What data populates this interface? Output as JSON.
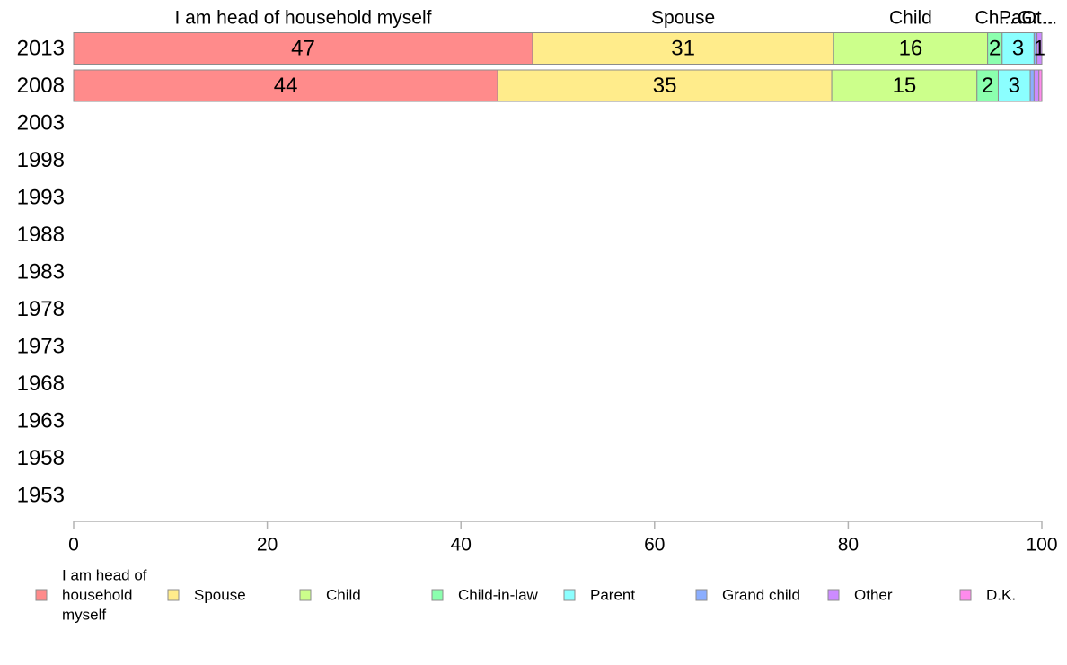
{
  "chart_data": {
    "type": "bar",
    "orientation": "horizontal",
    "stacked": true,
    "categories": [
      "2013",
      "2008",
      "2003",
      "1998",
      "1993",
      "1988",
      "1983",
      "1978",
      "1973",
      "1968",
      "1963",
      "1958",
      "1953"
    ],
    "series": [
      {
        "name": "I am head of household myself",
        "color": "#FF8B8B",
        "values": [
          47.4,
          43.8,
          null,
          null,
          null,
          null,
          null,
          null,
          null,
          null,
          null,
          null,
          null
        ],
        "labels": [
          "47",
          "44",
          "",
          "",
          "",
          "",
          "",
          "",
          "",
          "",
          "",
          "",
          ""
        ]
      },
      {
        "name": "Spouse",
        "color": "#FFEC8B",
        "values": [
          31.1,
          34.5,
          null,
          null,
          null,
          null,
          null,
          null,
          null,
          null,
          null,
          null,
          null
        ],
        "labels": [
          "31",
          "35",
          "",
          "",
          "",
          "",
          "",
          "",
          "",
          "",
          "",
          "",
          ""
        ]
      },
      {
        "name": "Child",
        "color": "#CCFF8B",
        "values": [
          15.9,
          15.0,
          null,
          null,
          null,
          null,
          null,
          null,
          null,
          null,
          null,
          null,
          null
        ],
        "labels": [
          "16",
          "15",
          "",
          "",
          "",
          "",
          "",
          "",
          "",
          "",
          "",
          "",
          ""
        ]
      },
      {
        "name": "Child-in-law",
        "color": "#8BFFAE",
        "values": [
          1.5,
          2.2,
          null,
          null,
          null,
          null,
          null,
          null,
          null,
          null,
          null,
          null,
          null
        ],
        "labels": [
          "2",
          "2",
          "",
          "",
          "",
          "",
          "",
          "",
          "",
          "",
          "",
          "",
          ""
        ]
      },
      {
        "name": "Parent",
        "color": "#8BFFFF",
        "values": [
          3.3,
          3.3,
          null,
          null,
          null,
          null,
          null,
          null,
          null,
          null,
          null,
          null,
          null
        ],
        "labels": [
          "3",
          "3",
          "",
          "",
          "",
          "",
          "",
          "",
          "",
          "",
          "",
          "",
          ""
        ]
      },
      {
        "name": "Grand child",
        "color": "#8BAEFF",
        "values": [
          0.3,
          0.4,
          null,
          null,
          null,
          null,
          null,
          null,
          null,
          null,
          null,
          null,
          null
        ],
        "labels": [
          "",
          "",
          "",
          "",
          "",
          "",
          "",
          "",
          "",
          "",
          "",
          "",
          ""
        ]
      },
      {
        "name": "Other",
        "color": "#CC8BFF",
        "values": [
          0.5,
          0.5,
          null,
          null,
          null,
          null,
          null,
          null,
          null,
          null,
          null,
          null,
          null
        ],
        "labels": [
          "1",
          "",
          "",
          "",
          "",
          "",
          "",
          "",
          "",
          "",
          "",
          "",
          ""
        ]
      },
      {
        "name": "D.K.",
        "color": "#FF8BEC",
        "values": [
          0.0,
          0.3,
          null,
          null,
          null,
          null,
          null,
          null,
          null,
          null,
          null,
          null,
          null
        ],
        "labels": [
          "",
          "",
          "",
          "",
          "",
          "",
          "",
          "",
          "",
          "",
          "",
          "",
          ""
        ]
      }
    ],
    "top_labels": [
      "I am head of household myself",
      "Spouse",
      "Child",
      "Ch...",
      "Pa...",
      "Gr...",
      "Ot..."
    ],
    "xlim": [
      0,
      100
    ],
    "xticks": [
      "0",
      "20",
      "40",
      "60",
      "80",
      "100"
    ],
    "xlabel": "",
    "ylabel": "",
    "title": "",
    "grid": false,
    "legend": {
      "position": "bottom",
      "items": [
        {
          "text": "I am head of household myself",
          "lines": [
            "I am head of",
            "household",
            "myself"
          ]
        },
        {
          "text": "Spouse",
          "lines": [
            "Spouse"
          ]
        },
        {
          "text": "Child",
          "lines": [
            "Child"
          ]
        },
        {
          "text": "Child-in-law",
          "lines": [
            "Child-in-law"
          ]
        },
        {
          "text": "Parent",
          "lines": [
            "Parent"
          ]
        },
        {
          "text": "Grand child",
          "lines": [
            "Grand child"
          ]
        },
        {
          "text": "Other",
          "lines": [
            "Other"
          ]
        },
        {
          "text": "D.K.",
          "lines": [
            "D.K."
          ]
        }
      ]
    }
  }
}
